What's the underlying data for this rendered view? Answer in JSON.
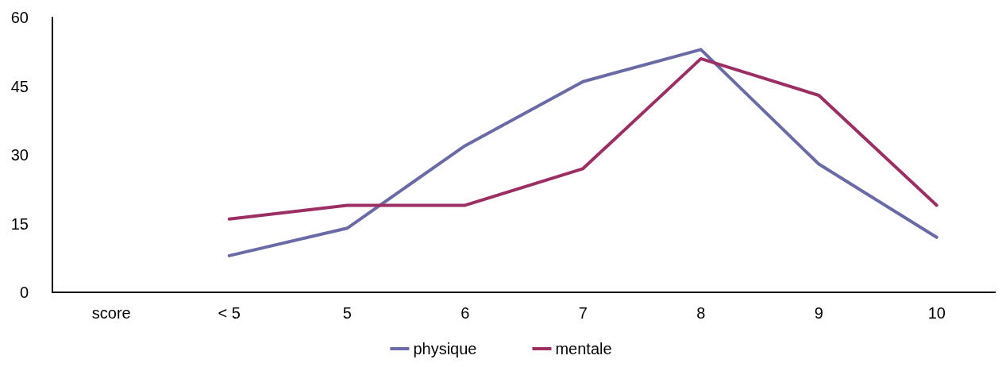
{
  "chart_data": {
    "type": "line",
    "categories": [
      "score",
      "< 5",
      "5",
      "6",
      "7",
      "8",
      "9",
      "10"
    ],
    "series": [
      {
        "name": "physique",
        "color": "#6a6ba6",
        "values": [
          null,
          8,
          14,
          32,
          46,
          53,
          28,
          12
        ]
      },
      {
        "name": "mentale",
        "color": "#9b2e62",
        "values": [
          null,
          16,
          19,
          19,
          27,
          51,
          43,
          19
        ]
      }
    ],
    "ylim": [
      0,
      60
    ],
    "yticks": [
      0,
      15,
      30,
      45,
      60
    ],
    "grid": false,
    "legend": "bottom",
    "marker": "none",
    "line_style": "solid"
  }
}
